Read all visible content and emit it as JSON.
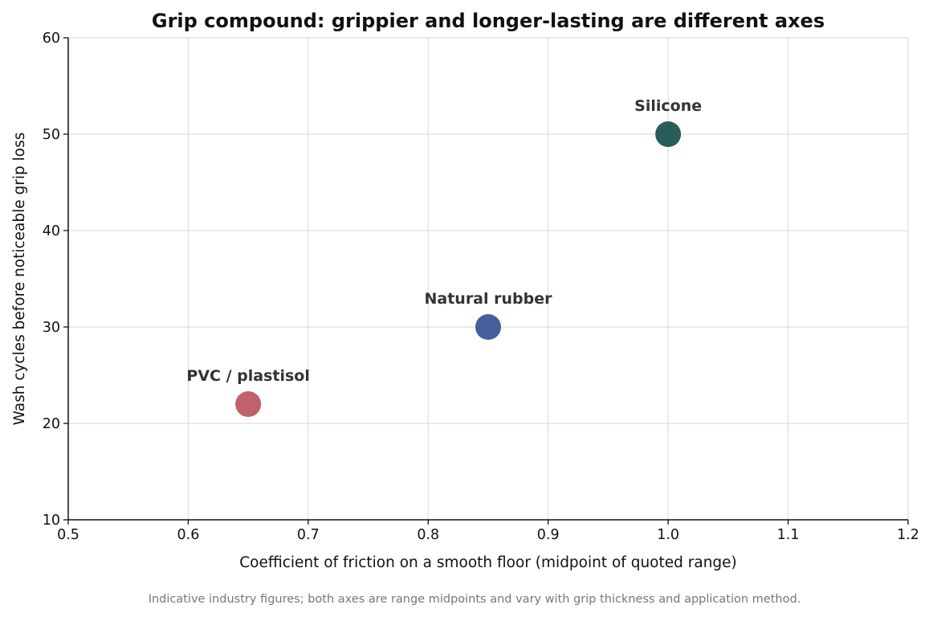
{
  "chart_data": {
    "type": "scatter",
    "title": "Grip compound: grippier and longer-lasting are different axes",
    "xlabel": "Coefficient of friction on a smooth floor (midpoint of quoted range)",
    "ylabel": "Wash cycles before noticeable grip loss",
    "xlim": [
      0.5,
      1.2
    ],
    "ylim": [
      10,
      60
    ],
    "xticks": [
      "0.5",
      "0.6",
      "0.7",
      "0.8",
      "0.9",
      "1.0",
      "1.1",
      "1.2"
    ],
    "yticks": [
      "10",
      "20",
      "30",
      "40",
      "50",
      "60"
    ],
    "grid": true,
    "points": [
      {
        "label": "PVC / plastisol",
        "x": 0.65,
        "y": 22,
        "color": "#c0626a"
      },
      {
        "label": "Natural rubber",
        "x": 0.85,
        "y": 30,
        "color": "#465e9e"
      },
      {
        "label": "Silicone",
        "x": 1.0,
        "y": 50,
        "color": "#2a5d5a"
      }
    ],
    "footnote": "Indicative industry figures; both axes are range midpoints and vary with grip thickness and application method."
  }
}
